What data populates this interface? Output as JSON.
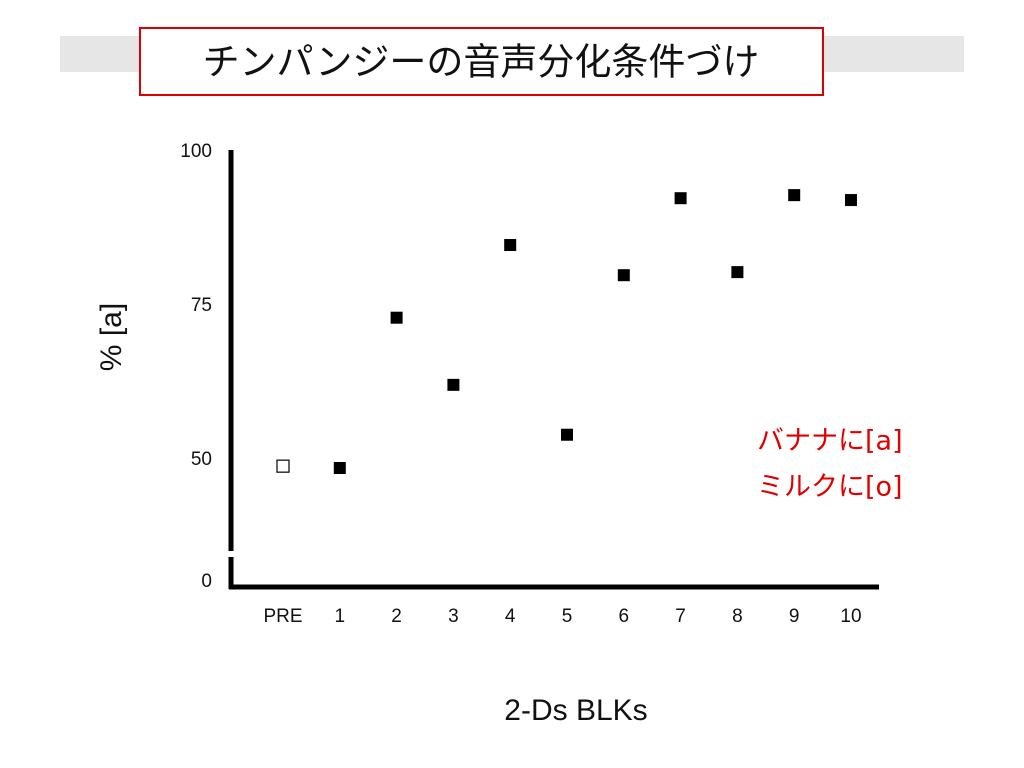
{
  "chart_data": {
    "type": "scatter",
    "title": "チンパンジーの音声分化条件づけ",
    "categories": [
      "PRE",
      "1",
      "2",
      "3",
      "4",
      "5",
      "6",
      "7",
      "8",
      "9",
      "10"
    ],
    "values": [
      49,
      48.7,
      73.1,
      62.2,
      84.9,
      54.1,
      80.0,
      92.5,
      80.5,
      93.0,
      92.2
    ],
    "marker_styles": [
      "open",
      "filled",
      "filled",
      "filled",
      "filled",
      "filled",
      "filled",
      "filled",
      "filled",
      "filled",
      "filled"
    ],
    "color": "#000000",
    "ylim": [
      0,
      100
    ],
    "axis_break": [
      0,
      45
    ],
    "yticks": [
      0,
      50,
      75,
      100
    ],
    "y_label": "% [a]",
    "x_label": "2-Ds BLKs",
    "annotations": [
      "バナナに[a]",
      "ミルクに[o]"
    ],
    "annotation_color": "#e00000"
  }
}
